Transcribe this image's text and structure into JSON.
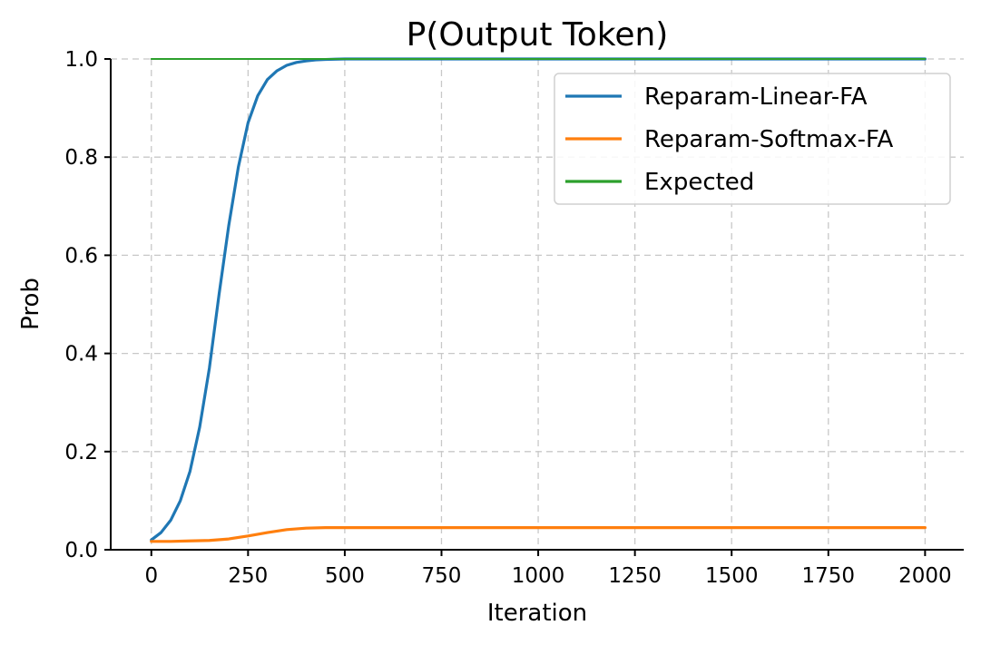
{
  "chart_data": {
    "type": "line",
    "title": "P(Output Token)",
    "xlabel": "Iteration",
    "ylabel": "Prob",
    "xlim": [
      -105,
      2100
    ],
    "ylim": [
      0.0,
      1.0
    ],
    "xticks": [
      0,
      250,
      500,
      750,
      1000,
      1250,
      1500,
      1750,
      2000
    ],
    "yticks": [
      0.0,
      0.2,
      0.4,
      0.6,
      0.8,
      1.0
    ],
    "xtick_labels": [
      "0",
      "250",
      "500",
      "750",
      "1000",
      "1250",
      "1500",
      "1750",
      "2000"
    ],
    "ytick_labels": [
      "0.0",
      "0.2",
      "0.4",
      "0.6",
      "0.8",
      "1.0"
    ],
    "grid": true,
    "legend_position": "top-right",
    "series": [
      {
        "name": "Reparam-Linear-FA",
        "color": "#1f77b4",
        "x": [
          0,
          25,
          50,
          75,
          100,
          125,
          150,
          175,
          200,
          225,
          250,
          275,
          300,
          325,
          350,
          375,
          400,
          425,
          450,
          475,
          500,
          550,
          600,
          700,
          800,
          1000,
          1500,
          2000
        ],
        "y": [
          0.02,
          0.035,
          0.06,
          0.1,
          0.16,
          0.25,
          0.37,
          0.52,
          0.66,
          0.78,
          0.87,
          0.925,
          0.958,
          0.976,
          0.987,
          0.993,
          0.996,
          0.998,
          0.999,
          0.9995,
          1.0,
          1.0,
          1.0,
          1.0,
          1.0,
          1.0,
          1.0,
          1.0
        ]
      },
      {
        "name": "Reparam-Softmax-FA",
        "color": "#ff7f0e",
        "x": [
          0,
          50,
          100,
          150,
          200,
          250,
          300,
          350,
          400,
          450,
          500,
          600,
          800,
          1000,
          1500,
          2000
        ],
        "y": [
          0.017,
          0.017,
          0.018,
          0.019,
          0.022,
          0.028,
          0.035,
          0.041,
          0.044,
          0.045,
          0.045,
          0.045,
          0.045,
          0.045,
          0.045,
          0.045
        ]
      },
      {
        "name": "Expected",
        "color": "#2ca02c",
        "x": [
          0,
          2000
        ],
        "y": [
          1.0,
          1.0
        ]
      }
    ]
  }
}
